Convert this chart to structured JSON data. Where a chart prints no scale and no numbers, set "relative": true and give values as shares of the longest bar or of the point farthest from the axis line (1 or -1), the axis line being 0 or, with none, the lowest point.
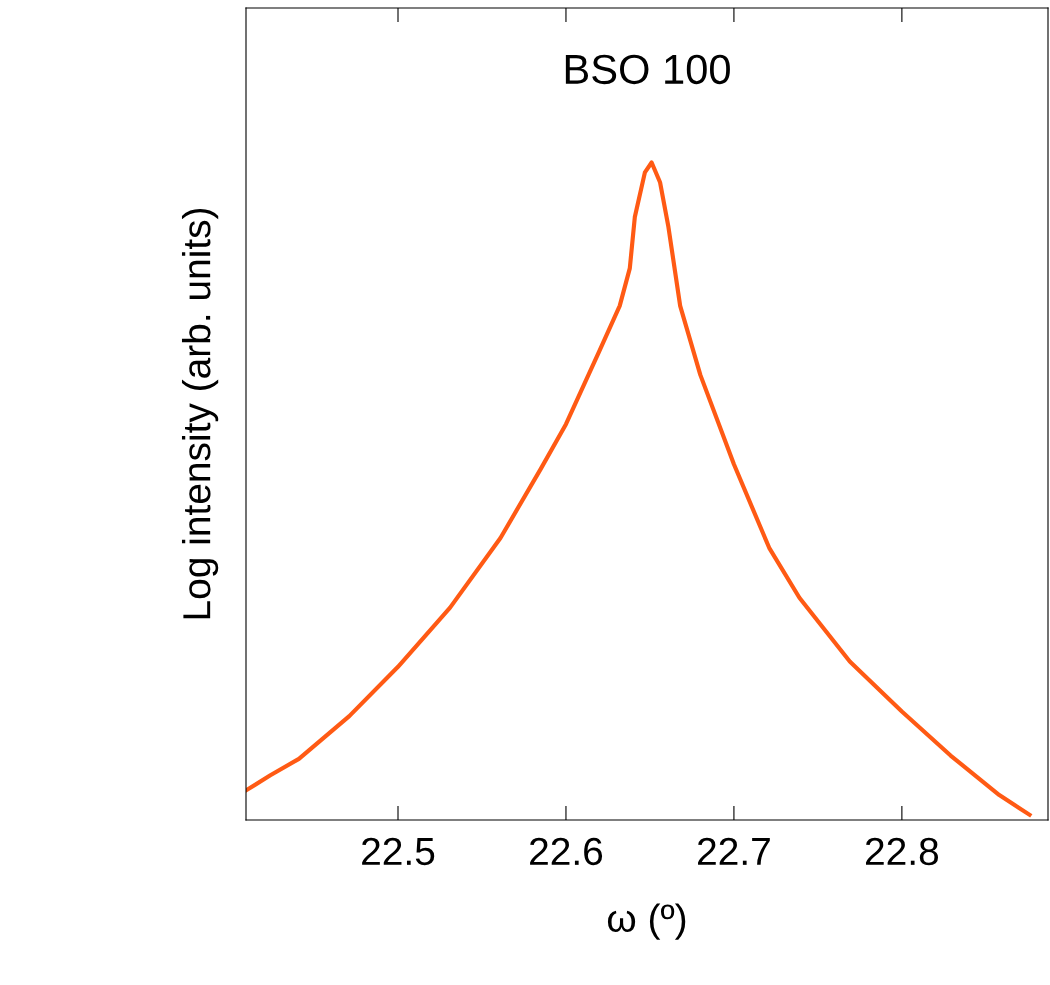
{
  "chart_data": {
    "type": "line",
    "relative": true,
    "xlabel": "ω (º)",
    "ylabel": "Log intensity (arb. units)",
    "annotations": [
      "BSO 100"
    ],
    "xlim": [
      22.4095,
      22.887
    ],
    "xticks": [
      22.5,
      22.6,
      22.7,
      22.8
    ],
    "grid": false,
    "legend": false,
    "marker": "none",
    "line_style": "solid",
    "series": [
      {
        "color": "#ff5a14",
        "x": [
          22.4095,
          22.424,
          22.441,
          22.471,
          22.5,
          22.531,
          22.561,
          22.585,
          22.6,
          22.62,
          22.632,
          22.638,
          22.641,
          22.647,
          22.651,
          22.656,
          22.661,
          22.668,
          22.68,
          22.7,
          22.721,
          22.739,
          22.769,
          22.8,
          22.829,
          22.858,
          22.876
        ],
        "values": [
          0.045,
          0.068,
          0.093,
          0.158,
          0.233,
          0.323,
          0.429,
          0.534,
          0.602,
          0.714,
          0.782,
          0.839,
          0.917,
          0.985,
          1,
          0.97,
          0.902,
          0.782,
          0.677,
          0.541,
          0.414,
          0.338,
          0.241,
          0.165,
          0.098,
          0.038,
          0.008
        ]
      }
    ]
  }
}
